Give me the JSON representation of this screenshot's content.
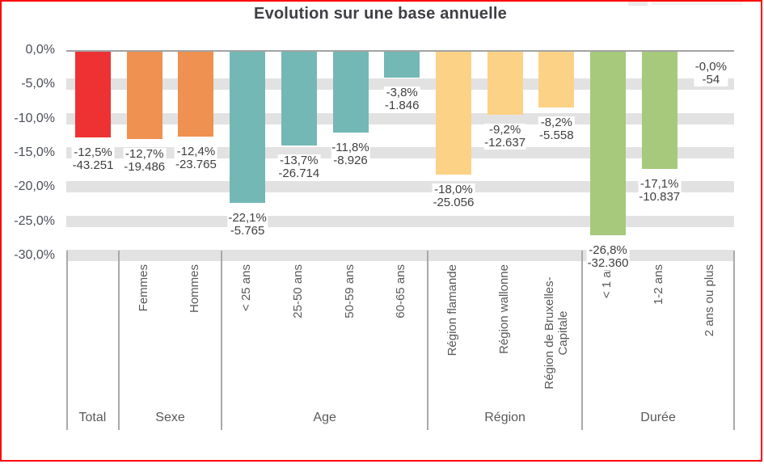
{
  "frame": {
    "border_color": "#fe0505"
  },
  "chart_data": {
    "type": "bar",
    "title": "Evolution sur une base annuelle",
    "xlabel": "",
    "ylabel": "",
    "ylim": [
      -30,
      0
    ],
    "grid": true,
    "value_format": "percent_and_absolute",
    "y_axis": {
      "ticks": [
        0,
        -5,
        -10,
        -15,
        -20,
        -25,
        -30
      ],
      "tick_labels": [
        "0,0%",
        "-5,0%",
        "-10,0%",
        "-15,0%",
        "-20,0%",
        "-25,0%",
        "-30,0%"
      ]
    },
    "groups": [
      {
        "label": "Total",
        "color": "#ee3133",
        "bars": [
          {
            "category": "",
            "percent_label": "-12,5%",
            "absolute_label": "-43.251",
            "value_pct": -12.5,
            "value_abs": -43251
          }
        ]
      },
      {
        "label": "Sexe",
        "color": "#ef9150",
        "bars": [
          {
            "category": "Femmes",
            "percent_label": "-12,7%",
            "absolute_label": "-19.486",
            "value_pct": -12.7,
            "value_abs": -19486
          },
          {
            "category": "Hommes",
            "percent_label": "-12,4%",
            "absolute_label": "-23.765",
            "value_pct": -12.4,
            "value_abs": -23765
          }
        ]
      },
      {
        "label": "Age",
        "color": "#73b8b5",
        "bars": [
          {
            "category": "< 25 ans",
            "percent_label": "-22,1%",
            "absolute_label": "-5.765",
            "value_pct": -22.1,
            "value_abs": -5765
          },
          {
            "category": "25-50 ans",
            "percent_label": "-13,7%",
            "absolute_label": "-26.714",
            "value_pct": -13.7,
            "value_abs": -26714
          },
          {
            "category": "50-59 ans",
            "percent_label": "-11,8%",
            "absolute_label": "-8.926",
            "value_pct": -11.8,
            "value_abs": -8926
          },
          {
            "category": "60-65 ans",
            "percent_label": "-3,8%",
            "absolute_label": "-1.846",
            "value_pct": -3.8,
            "value_abs": -1846
          }
        ]
      },
      {
        "label": "Région",
        "color": "#fcd287",
        "bars": [
          {
            "category": "Région flamande",
            "percent_label": "-18,0%",
            "absolute_label": "-25.056",
            "value_pct": -18.0,
            "value_abs": -25056
          },
          {
            "category": "Région wallonne",
            "percent_label": "-9,2%",
            "absolute_label": "-12.637",
            "value_pct": -9.2,
            "value_abs": -12637
          },
          {
            "category": "Région de Bruxelles-\nCapitale",
            "percent_label": "-8,2%",
            "absolute_label": "-5.558",
            "value_pct": -8.2,
            "value_abs": -5558
          }
        ]
      },
      {
        "label": "Durée",
        "color": "#a6c97c",
        "bars": [
          {
            "category": "< 1 an",
            "percent_label": "-26,8%",
            "absolute_label": "-32.360",
            "value_pct": -26.8,
            "value_abs": -32360
          },
          {
            "category": "1-2 ans",
            "percent_label": "-17,1%",
            "absolute_label": "-10.837",
            "value_pct": -17.1,
            "value_abs": -10837
          },
          {
            "category": "2 ans ou plus",
            "percent_label": "-0,0%",
            "absolute_label": "-54",
            "value_pct": 0.0,
            "value_abs": -54
          }
        ]
      }
    ]
  }
}
